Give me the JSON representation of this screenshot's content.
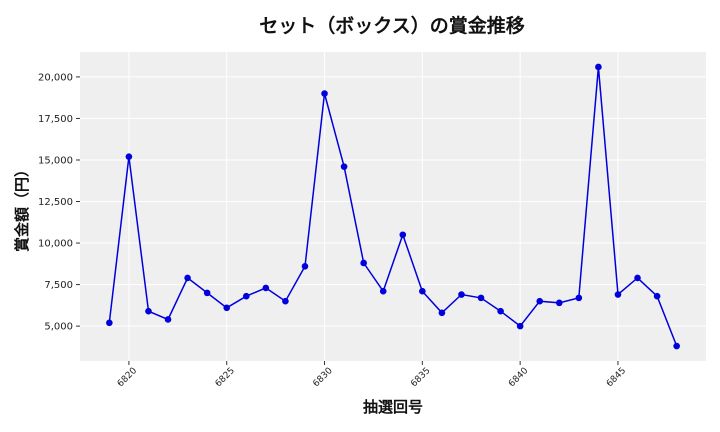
{
  "chart_data": {
    "type": "line",
    "title": "セット（ボックス）の賞金推移",
    "xlabel": "抽選回号",
    "ylabel": "賞金額（円）",
    "x": [
      6819,
      6820,
      6821,
      6822,
      6823,
      6824,
      6825,
      6826,
      6827,
      6828,
      6829,
      6830,
      6831,
      6832,
      6833,
      6834,
      6835,
      6836,
      6837,
      6838,
      6839,
      6840,
      6841,
      6842,
      6843,
      6844,
      6845,
      6846,
      6847,
      6848
    ],
    "series": [
      {
        "values": [
          5200,
          15200,
          5900,
          5400,
          7900,
          7000,
          6100,
          6800,
          7300,
          6500,
          8600,
          19000,
          14600,
          8800,
          7100,
          10500,
          7100,
          5800,
          6900,
          6700,
          5900,
          5000,
          6500,
          6400,
          6700,
          20600,
          6900,
          7900,
          6800,
          3800
        ],
        "color": "#0000dd"
      }
    ],
    "xticks": [
      6820,
      6825,
      6830,
      6835,
      6840,
      6845
    ],
    "yticks": [
      5000,
      7500,
      10000,
      12500,
      15000,
      17500,
      20000
    ],
    "ytick_labels": [
      "5,000",
      "7,500",
      "10,000",
      "12,500",
      "15,000",
      "17,500",
      "20,000"
    ],
    "xlim": [
      6817.5,
      6849.5
    ],
    "ylim": [
      2900,
      21500
    ],
    "grid": true,
    "background": "#efefef"
  }
}
